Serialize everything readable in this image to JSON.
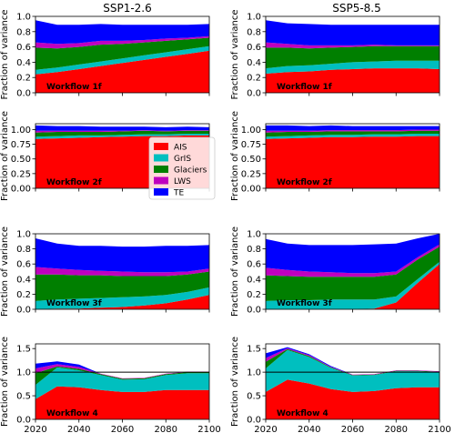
{
  "column_titles": [
    "SSP1-2.6",
    "SSP5-8.5"
  ],
  "ylabel": "Fraction of variance",
  "x_ticks": [
    2020,
    2040,
    2060,
    2080,
    2100
  ],
  "y_ticks": [
    "0.0",
    "0.2",
    "0.4",
    "0.6",
    "0.8",
    "1.0"
  ],
  "y_ticks_row2": [
    "0.00",
    "0.25",
    "0.50",
    "0.75",
    "1.00"
  ],
  "colors": {
    "AIS": "#ff0000",
    "GrIS": "#00bfbf",
    "Glaciers": "#007f00",
    "LWS": "#bf00bf",
    "TE": "#0000ff"
  },
  "legend": {
    "placement": "center",
    "entries": [
      "AIS",
      "GrIS",
      "Glaciers",
      "LWS",
      "TE"
    ]
  },
  "chart_data": [
    {
      "type": "area",
      "workflow": "Workflow 1f",
      "column": "SSP1-2.6",
      "ylim": [
        0,
        1.0
      ],
      "x": [
        2020,
        2030,
        2040,
        2050,
        2060,
        2070,
        2080,
        2090,
        2100
      ],
      "series": [
        {
          "name": "AIS",
          "values": [
            0.24,
            0.27,
            0.31,
            0.35,
            0.39,
            0.43,
            0.47,
            0.51,
            0.55
          ]
        },
        {
          "name": "GrIS",
          "values": [
            0.06,
            0.06,
            0.06,
            0.06,
            0.06,
            0.06,
            0.06,
            0.06,
            0.06
          ]
        },
        {
          "name": "Glaciers",
          "values": [
            0.29,
            0.25,
            0.23,
            0.22,
            0.19,
            0.17,
            0.15,
            0.13,
            0.11
          ]
        },
        {
          "name": "LWS",
          "values": [
            0.07,
            0.06,
            0.05,
            0.05,
            0.04,
            0.03,
            0.03,
            0.02,
            0.02
          ]
        },
        {
          "name": "TE",
          "values": [
            0.29,
            0.25,
            0.24,
            0.22,
            0.21,
            0.2,
            0.18,
            0.17,
            0.16
          ]
        }
      ]
    },
    {
      "type": "area",
      "workflow": "Workflow 1f",
      "column": "SSP5-8.5",
      "ylim": [
        0,
        1.0
      ],
      "x": [
        2020,
        2030,
        2040,
        2050,
        2060,
        2070,
        2080,
        2090,
        2100
      ],
      "series": [
        {
          "name": "AIS",
          "values": [
            0.25,
            0.27,
            0.28,
            0.3,
            0.31,
            0.32,
            0.32,
            0.32,
            0.31
          ]
        },
        {
          "name": "GrIS",
          "values": [
            0.07,
            0.08,
            0.08,
            0.08,
            0.09,
            0.09,
            0.1,
            0.1,
            0.11
          ]
        },
        {
          "name": "Glaciers",
          "values": [
            0.27,
            0.24,
            0.22,
            0.21,
            0.2,
            0.2,
            0.19,
            0.19,
            0.19
          ]
        },
        {
          "name": "LWS",
          "values": [
            0.07,
            0.05,
            0.04,
            0.03,
            0.02,
            0.02,
            0.01,
            0.01,
            0.01
          ]
        },
        {
          "name": "TE",
          "values": [
            0.29,
            0.27,
            0.28,
            0.27,
            0.27,
            0.26,
            0.27,
            0.27,
            0.27
          ]
        }
      ]
    },
    {
      "type": "area",
      "workflow": "Workflow 2f",
      "column": "SSP1-2.6",
      "ylim": [
        0,
        1.1
      ],
      "x": [
        2020,
        2030,
        2040,
        2050,
        2060,
        2070,
        2080,
        2090,
        2100
      ],
      "series": [
        {
          "name": "AIS",
          "values": [
            0.84,
            0.85,
            0.86,
            0.87,
            0.88,
            0.89,
            0.89,
            0.9,
            0.9
          ]
        },
        {
          "name": "GrIS",
          "values": [
            0.04,
            0.04,
            0.04,
            0.03,
            0.03,
            0.03,
            0.03,
            0.03,
            0.03
          ]
        },
        {
          "name": "Glaciers",
          "values": [
            0.07,
            0.07,
            0.06,
            0.06,
            0.06,
            0.06,
            0.05,
            0.05,
            0.05
          ]
        },
        {
          "name": "LWS",
          "values": [
            0.03,
            0.02,
            0.02,
            0.02,
            0.01,
            0.01,
            0.01,
            0.01,
            0.01
          ]
        },
        {
          "name": "TE",
          "values": [
            0.09,
            0.08,
            0.08,
            0.07,
            0.07,
            0.06,
            0.06,
            0.06,
            0.05
          ]
        }
      ]
    },
    {
      "type": "area",
      "workflow": "Workflow 2f",
      "column": "SSP5-8.5",
      "ylim": [
        0,
        1.1
      ],
      "x": [
        2020,
        2030,
        2040,
        2050,
        2060,
        2070,
        2080,
        2090,
        2100
      ],
      "series": [
        {
          "name": "AIS",
          "values": [
            0.84,
            0.85,
            0.86,
            0.87,
            0.87,
            0.88,
            0.88,
            0.89,
            0.89
          ]
        },
        {
          "name": "GrIS",
          "values": [
            0.04,
            0.04,
            0.04,
            0.04,
            0.04,
            0.04,
            0.04,
            0.04,
            0.04
          ]
        },
        {
          "name": "Glaciers",
          "values": [
            0.07,
            0.07,
            0.06,
            0.06,
            0.06,
            0.05,
            0.05,
            0.05,
            0.05
          ]
        },
        {
          "name": "LWS",
          "values": [
            0.03,
            0.02,
            0.02,
            0.02,
            0.02,
            0.02,
            0.02,
            0.02,
            0.02
          ]
        },
        {
          "name": "TE",
          "values": [
            0.09,
            0.09,
            0.08,
            0.08,
            0.07,
            0.07,
            0.07,
            0.06,
            0.06
          ]
        }
      ]
    },
    {
      "type": "area",
      "workflow": "Workflow 3f",
      "column": "SSP1-2.6",
      "ylim": [
        0,
        1.0
      ],
      "x": [
        2020,
        2030,
        2040,
        2050,
        2060,
        2070,
        2080,
        2090,
        2100
      ],
      "series": [
        {
          "name": "AIS",
          "values": [
            0.0,
            0.01,
            0.01,
            0.02,
            0.03,
            0.05,
            0.08,
            0.13,
            0.19
          ]
        },
        {
          "name": "GrIS",
          "values": [
            0.11,
            0.12,
            0.13,
            0.13,
            0.13,
            0.12,
            0.11,
            0.1,
            0.1
          ]
        },
        {
          "name": "Glaciers",
          "values": [
            0.35,
            0.33,
            0.31,
            0.3,
            0.28,
            0.27,
            0.25,
            0.23,
            0.21
          ]
        },
        {
          "name": "LWS",
          "values": [
            0.1,
            0.08,
            0.07,
            0.06,
            0.06,
            0.05,
            0.05,
            0.04,
            0.04
          ]
        },
        {
          "name": "TE",
          "values": [
            0.38,
            0.33,
            0.32,
            0.33,
            0.33,
            0.34,
            0.35,
            0.34,
            0.31
          ]
        }
      ]
    },
    {
      "type": "area",
      "workflow": "Workflow 3f",
      "column": "SSP5-8.5",
      "ylim": [
        0,
        1.0
      ],
      "x": [
        2020,
        2030,
        2040,
        2050,
        2060,
        2070,
        2080,
        2090,
        2100
      ],
      "series": [
        {
          "name": "AIS",
          "values": [
            0.0,
            0.0,
            0.0,
            0.0,
            0.0,
            0.01,
            0.09,
            0.35,
            0.6
          ]
        },
        {
          "name": "GrIS",
          "values": [
            0.11,
            0.12,
            0.12,
            0.13,
            0.13,
            0.12,
            0.08,
            0.05,
            0.03
          ]
        },
        {
          "name": "Glaciers",
          "values": [
            0.34,
            0.32,
            0.31,
            0.3,
            0.3,
            0.3,
            0.29,
            0.26,
            0.2
          ]
        },
        {
          "name": "LWS",
          "values": [
            0.1,
            0.08,
            0.07,
            0.06,
            0.05,
            0.05,
            0.04,
            0.03,
            0.03
          ]
        },
        {
          "name": "TE",
          "values": [
            0.38,
            0.35,
            0.35,
            0.36,
            0.37,
            0.38,
            0.37,
            0.25,
            0.14
          ]
        }
      ]
    },
    {
      "type": "area",
      "workflow": "Workflow 4",
      "column": "SSP1-2.6",
      "ylim": [
        0,
        1.6
      ],
      "x": [
        2020,
        2030,
        2040,
        2050,
        2060,
        2070,
        2080,
        2090,
        2100
      ],
      "series": [
        {
          "name": "AIS",
          "values": [
            0.43,
            0.7,
            0.68,
            0.62,
            0.58,
            0.58,
            0.62,
            0.62,
            0.62
          ]
        },
        {
          "name": "GrIS",
          "values": [
            0.3,
            0.4,
            0.36,
            0.32,
            0.26,
            0.27,
            0.32,
            0.36,
            0.36
          ]
        },
        {
          "name": "Glaciers",
          "values": [
            0.25,
            0.02,
            0.03,
            0.02,
            0.02,
            0.02,
            0.02,
            0.02,
            0.02
          ]
        },
        {
          "name": "LWS",
          "values": [
            0.1,
            0.05,
            0.04,
            0.01,
            0.01,
            0.01,
            0.01,
            0.01,
            0.01
          ]
        },
        {
          "name": "TE",
          "values": [
            0.1,
            0.06,
            0.05,
            0.0,
            0.0,
            0.0,
            0.0,
            0.0,
            0.0
          ]
        }
      ]
    },
    {
      "type": "area",
      "workflow": "Workflow 4",
      "column": "SSP5-8.5",
      "ylim": [
        0,
        1.6
      ],
      "x": [
        2020,
        2030,
        2040,
        2050,
        2060,
        2070,
        2080,
        2090,
        2100
      ],
      "series": [
        {
          "name": "AIS",
          "values": [
            0.58,
            0.84,
            0.76,
            0.64,
            0.58,
            0.6,
            0.66,
            0.68,
            0.68
          ]
        },
        {
          "name": "GrIS",
          "values": [
            0.5,
            0.63,
            0.56,
            0.45,
            0.35,
            0.34,
            0.36,
            0.34,
            0.32
          ]
        },
        {
          "name": "Glaciers",
          "values": [
            0.14,
            0.02,
            0.02,
            0.01,
            0.01,
            0.01,
            0.01,
            0.01,
            0.01
          ]
        },
        {
          "name": "LWS",
          "values": [
            0.08,
            0.02,
            0.02,
            0.01,
            0.01,
            0.01,
            0.01,
            0.01,
            0.01
          ]
        },
        {
          "name": "TE",
          "values": [
            0.1,
            0.02,
            0.02,
            0.02,
            0.0,
            0.0,
            0.0,
            0.0,
            0.0
          ]
        }
      ]
    }
  ]
}
